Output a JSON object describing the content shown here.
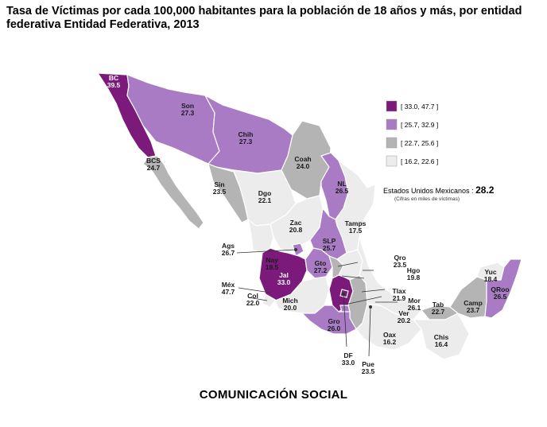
{
  "title": "Tasa de Víctimas por cada 100,000 habitantes para la población de 18 años y más, por entidad federativa Entidad Federativa, 2013",
  "footer": "COMUNICACIÓN SOCIAL",
  "national": {
    "label": "Estados Unidos Mexicanos :",
    "value": "28.2",
    "note": "(Cifras en miles de víctimas)"
  },
  "legend": [
    {
      "label": "[ 33.0, 47.7 ]",
      "color": "#7b1a7b"
    },
    {
      "label": "[ 25.7, 32.9 ]",
      "color": "#a97bc4"
    },
    {
      "label": "[ 22.7, 25.6 ]",
      "color": "#b4b4b4"
    },
    {
      "label": "[ 16.2, 22.6 ]",
      "color": "#ececec"
    }
  ],
  "states": [
    {
      "abbr": "BC",
      "value": "39.5",
      "class": 0
    },
    {
      "abbr": "Son",
      "value": "27.3",
      "class": 1
    },
    {
      "abbr": "Chih",
      "value": "27.3",
      "class": 1
    },
    {
      "abbr": "BCS",
      "value": "24.7",
      "class": 2
    },
    {
      "abbr": "Coah",
      "value": "24.0",
      "class": 2
    },
    {
      "abbr": "Sin",
      "value": "23.5",
      "class": 2
    },
    {
      "abbr": "Dgo",
      "value": "22.1",
      "class": 3
    },
    {
      "abbr": "NL",
      "value": "26.5",
      "class": 1
    },
    {
      "abbr": "Tamps",
      "value": "17.5",
      "class": 3
    },
    {
      "abbr": "Zac",
      "value": "20.8",
      "class": 3
    },
    {
      "abbr": "SLP",
      "value": "25.7",
      "class": 1
    },
    {
      "abbr": "Ags",
      "value": "26.7",
      "class": 1
    },
    {
      "abbr": "Nay",
      "value": "18.5",
      "class": 3
    },
    {
      "abbr": "Jal",
      "value": "33.0",
      "class": 0
    },
    {
      "abbr": "Gto",
      "value": "27.2",
      "class": 1
    },
    {
      "abbr": "Qro",
      "value": "23.5",
      "class": 2
    },
    {
      "abbr": "Hgo",
      "value": "19.8",
      "class": 3
    },
    {
      "abbr": "Méx",
      "value": "47.7",
      "class": 0
    },
    {
      "abbr": "Col",
      "value": "22.0",
      "class": 3
    },
    {
      "abbr": "Mich",
      "value": "20.0",
      "class": 3
    },
    {
      "abbr": "Tlax",
      "value": "21.9",
      "class": 3
    },
    {
      "abbr": "Mor",
      "value": "26.1",
      "class": 1
    },
    {
      "abbr": "Ver",
      "value": "20.2",
      "class": 3
    },
    {
      "abbr": "Gro",
      "value": "26.0",
      "class": 1
    },
    {
      "abbr": "DF",
      "value": "33.0",
      "class": 0
    },
    {
      "abbr": "Pue",
      "value": "23.5",
      "class": 2
    },
    {
      "abbr": "Oax",
      "value": "16.2",
      "class": 3
    },
    {
      "abbr": "Chis",
      "value": "16.4",
      "class": 3
    },
    {
      "abbr": "Tab",
      "value": "22.7",
      "class": 2
    },
    {
      "abbr": "Camp",
      "value": "23.7",
      "class": 2
    },
    {
      "abbr": "Yuc",
      "value": "18.4",
      "class": 3
    },
    {
      "abbr": "QRoo",
      "value": "26.5",
      "class": 1
    }
  ]
}
